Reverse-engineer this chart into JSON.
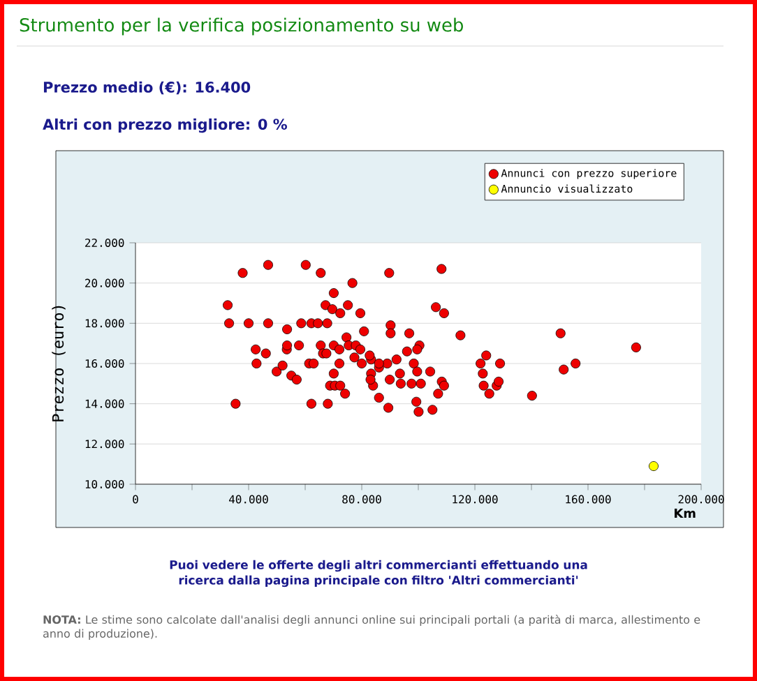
{
  "chart_data": {
    "type": "scatter",
    "title": "Strumento per la verifica posizionamento su web",
    "annotations": [
      "Prezzo medio (€): **16.400**",
      "Altri con prezzo migliore: **0 %**",
      "Puoi vedere le offerte degli altri commercianti effettuando una ricerca dalla pagina principale con filtro **'Altri commercianti'**",
      "**NOTA:** Le stime sono calcolate dall'analisi degli annunci online sui principali portali (a parità di marca, allestimento e anno di produzione)."
    ],
    "xlabel": "Km",
    "ylabel": "Prezzo (euro)",
    "series": [
      {
        "name": "Annunci con prezzo superiore",
        "color": "#ee0000",
        "x": [
          32600,
          33100,
          35400,
          37900,
          46900,
          40000,
          46900,
          42500,
          46100,
          42800,
          49900,
          52000,
          53500,
          53600,
          53600,
          55100,
          57000,
          57800,
          58600,
          60200,
          62200,
          64500,
          67800,
          61400,
          62200,
          63000,
          65500,
          66300,
          65500,
          67200,
          69600,
          70100,
          72400,
          75100,
          76700,
          68000,
          68800,
          70100,
          70500,
          72100,
          72400,
          74100,
          70100,
          72100,
          67500,
          74600,
          75400,
          77900,
          79500,
          77400,
          80000,
          79500,
          80800,
          83300,
          83300,
          84000,
          86100,
          86100,
          83100,
          89400,
          89700,
          108200,
          90200,
          90200,
          96800,
          106200,
          109100,
          114900,
          150300,
          177000,
          151400,
          155600,
          96000,
          100400,
          99600,
          92300,
          89000,
          86100,
          82800,
          93500,
          89900,
          93800,
          97600,
          100900,
          98400,
          99600,
          104200,
          99300,
          100100,
          105000,
          108300,
          109100,
          107000,
          122000,
          124000,
          128900,
          122800,
          123100,
          125100,
          127700,
          128400,
          140200
        ],
        "values": [
          18900,
          18000,
          14000,
          20500,
          20900,
          18000,
          18000,
          16700,
          16500,
          16000,
          15600,
          15900,
          16700,
          17700,
          16900,
          15400,
          15200,
          16900,
          18000,
          20900,
          18000,
          18000,
          18000,
          16000,
          14000,
          16000,
          16900,
          16500,
          20500,
          18900,
          18700,
          19500,
          18500,
          18900,
          20000,
          14000,
          14900,
          15500,
          14900,
          16000,
          14900,
          14500,
          16900,
          16700,
          16500,
          17300,
          16900,
          16900,
          16700,
          16300,
          16000,
          18500,
          17600,
          16200,
          15500,
          14900,
          14300,
          15800,
          15200,
          13800,
          20500,
          20700,
          17900,
          17500,
          17500,
          18800,
          18500,
          17400,
          17500,
          16800,
          15700,
          16000,
          16600,
          16900,
          16700,
          16200,
          16000,
          16000,
          16400,
          15500,
          15200,
          15000,
          15000,
          15000,
          16000,
          15600,
          15600,
          14100,
          13600,
          13700,
          15100,
          14900,
          14500,
          16000,
          16400,
          16000,
          15500,
          14900,
          14500,
          14900,
          15100,
          14400
        ]
      },
      {
        "name": "Annuncio visualizzato",
        "color": "#ffff00",
        "x": [
          183200
        ],
        "values": [
          10900
        ]
      }
    ],
    "xlim": [
      0,
      200000
    ],
    "ylim": [
      10000,
      22000
    ],
    "xticks": [
      0,
      {
        "value": 20000,
        "label": null
      },
      {
        "value": 40000,
        "label": "40.000"
      },
      {
        "value": 60000,
        "label": null
      },
      {
        "value": 80000,
        "label": "80.000"
      },
      {
        "value": 100000,
        "label": null
      },
      {
        "value": 120000,
        "label": "120.000"
      },
      {
        "value": 140000,
        "label": null
      },
      {
        "value": 160000,
        "label": "160.000"
      },
      {
        "value": 180000,
        "label": null
      },
      {
        "value": 200000,
        "label": "200.000"
      }
    ],
    "yticks": [
      {
        "value": 10000,
        "label": "10.000"
      },
      {
        "value": 12000,
        "label": "12.000"
      },
      {
        "value": 14000,
        "label": "14.000"
      },
      {
        "value": 16000,
        "label": "16.000"
      },
      {
        "value": 18000,
        "label": "18.000"
      },
      {
        "value": 20000,
        "label": "20.000"
      },
      {
        "value": 22000,
        "label": "22.000"
      }
    ],
    "grid": "y",
    "legend": "top right"
  }
}
